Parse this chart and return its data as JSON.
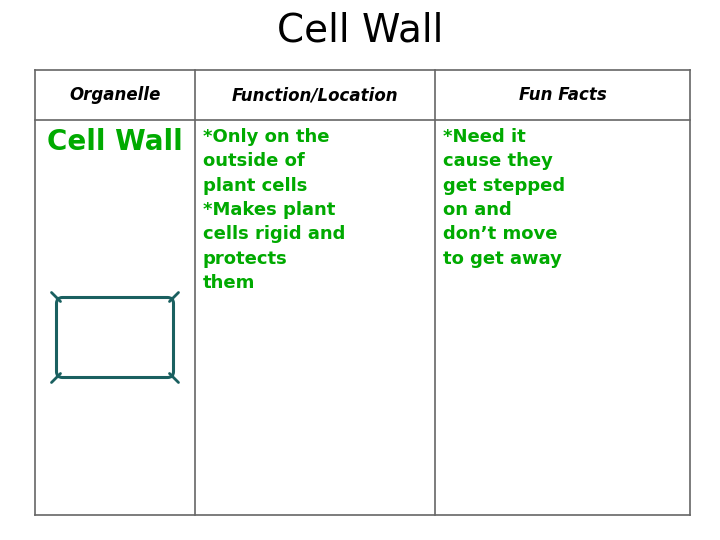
{
  "title": "Cell Wall",
  "title_fontsize": 28,
  "title_color": "#000000",
  "header_row": [
    "Organelle",
    "Function/Location",
    "Fun Facts"
  ],
  "header_fontsize": 12,
  "header_color": "#000000",
  "col1_text": "Cell Wall",
  "col1_fontsize": 20,
  "col1_color": "#00aa00",
  "col2_text": "*Only on the\noutside of\nplant cells\n*Makes plant\ncells rigid and\nprotects\nthem",
  "col2_fontsize": 13,
  "col2_color": "#00aa00",
  "col3_text": "*Need it\ncause they\nget stepped\non and\ndon’t move\nto get away",
  "col3_fontsize": 13,
  "col3_color": "#00aa00",
  "table_border_color": "#666666",
  "background_color": "#ffffff",
  "cell_wall_draw_color": "#1a6060"
}
